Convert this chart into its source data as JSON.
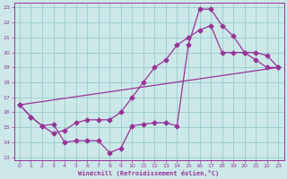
{
  "xlabel": "Windchill (Refroidissement éolien,°C)",
  "xlim": [
    -0.5,
    23.5
  ],
  "ylim": [
    12.8,
    23.3
  ],
  "xticks": [
    0,
    1,
    2,
    3,
    4,
    5,
    6,
    7,
    8,
    9,
    10,
    11,
    12,
    13,
    14,
    15,
    16,
    17,
    18,
    19,
    20,
    21,
    22,
    23
  ],
  "yticks": [
    13,
    14,
    15,
    16,
    17,
    18,
    19,
    20,
    21,
    22,
    23
  ],
  "bg_color": "#cce8e8",
  "grid_color": "#99cccc",
  "line_color": "#993399",
  "line1_x": [
    0,
    1,
    2,
    3,
    4,
    5,
    6,
    7,
    8,
    9,
    10,
    11,
    12,
    13,
    14,
    15,
    16,
    17,
    18,
    19,
    20,
    21,
    22,
    23
  ],
  "line1_y": [
    16.5,
    15.7,
    15.1,
    15.2,
    14.0,
    14.1,
    14.1,
    14.1,
    13.3,
    13.6,
    15.1,
    15.2,
    15.3,
    15.3,
    15.1,
    20.5,
    22.9,
    22.9,
    21.8,
    21.1,
    20.0,
    19.5,
    19.0,
    19.0
  ],
  "line2_x": [
    0,
    1,
    2,
    3,
    4,
    5,
    6,
    7,
    8,
    9,
    10,
    11,
    12,
    13,
    14,
    15,
    16,
    17,
    18,
    19,
    20,
    21,
    22,
    23
  ],
  "line2_y": [
    16.5,
    15.7,
    15.1,
    14.6,
    14.8,
    15.3,
    15.5,
    15.5,
    15.5,
    16.0,
    17.0,
    18.0,
    19.0,
    19.5,
    20.5,
    21.0,
    21.5,
    21.8,
    20.0,
    20.0,
    20.0,
    20.0,
    19.8,
    19.0
  ],
  "line3_x": [
    0,
    23
  ],
  "line3_y": [
    16.5,
    19.0
  ],
  "marker_size": 2.5,
  "line_width": 0.9
}
